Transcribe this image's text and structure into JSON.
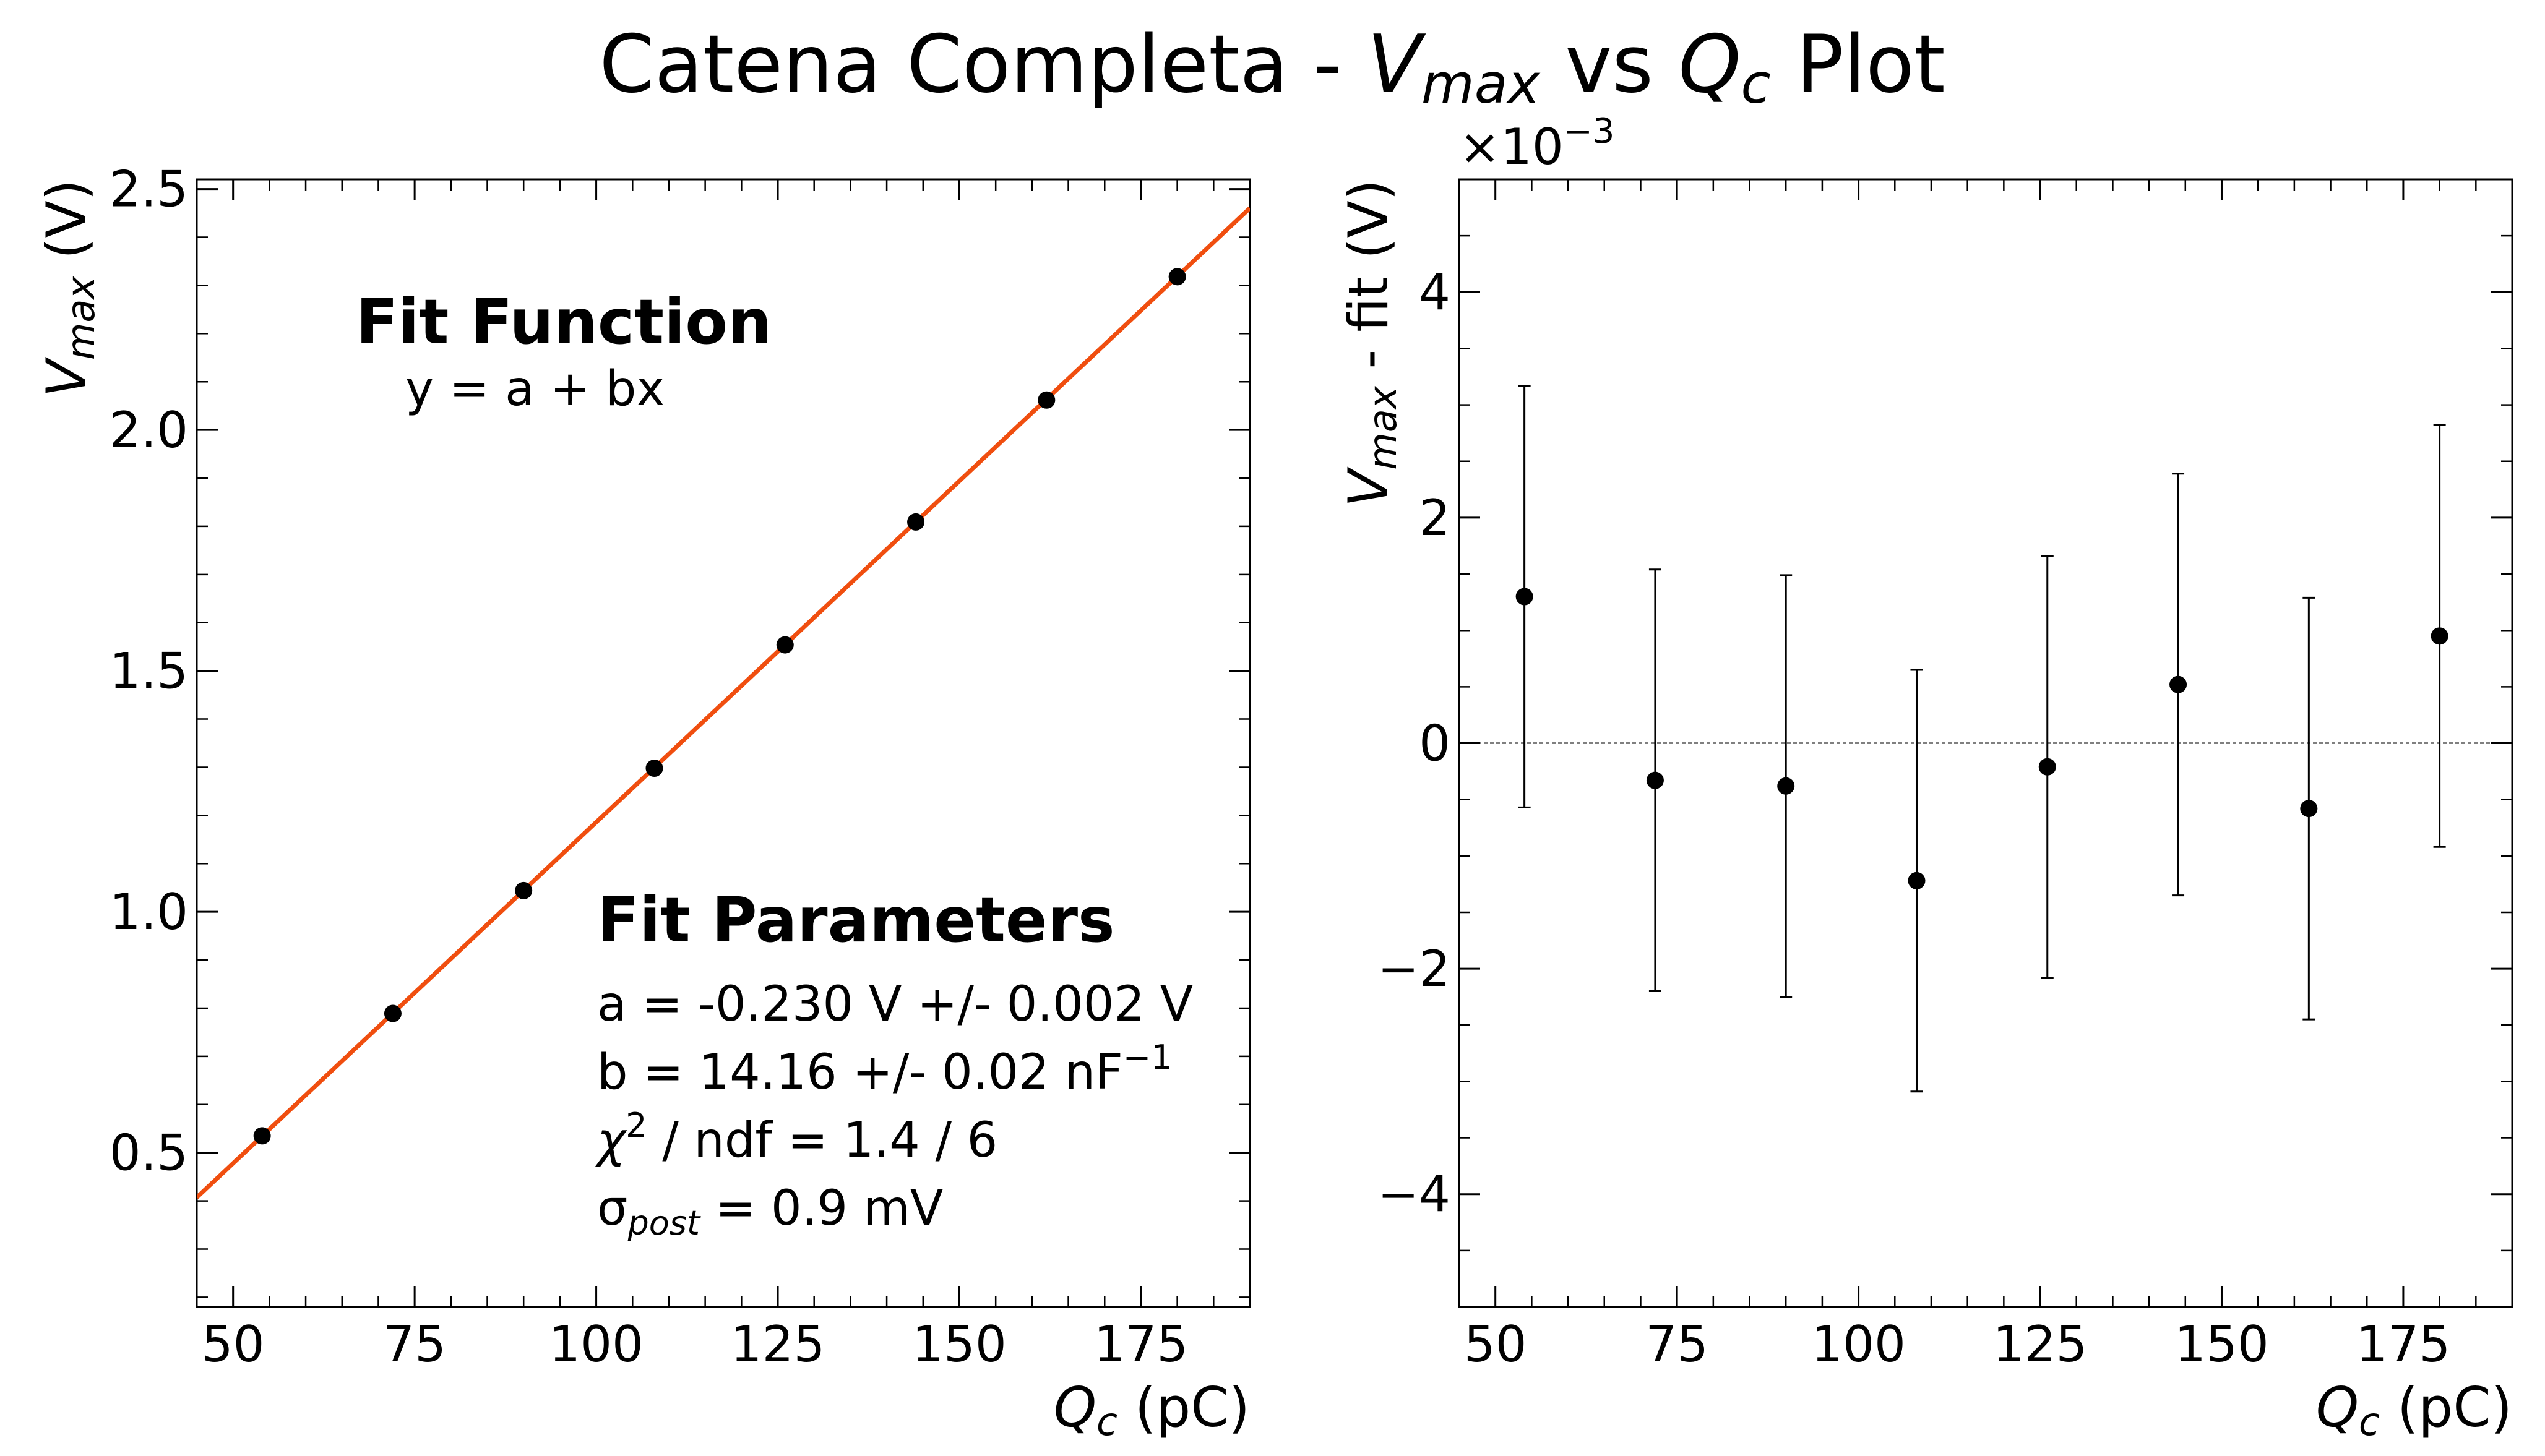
{
  "figure": {
    "title_prefix": "Catena Completa - ",
    "title_v": "V",
    "title_v_sub": "max",
    "title_mid": " vs ",
    "title_q": "Q",
    "title_q_sub": "c",
    "title_suffix": " Plot"
  },
  "chart_data": [
    {
      "type": "scatter",
      "title": "",
      "xlabel_var": "Q",
      "xlabel_sub": "c",
      "xlabel_unit": " (pC)",
      "ylabel_var": "V",
      "ylabel_sub": "max",
      "ylabel_unit": " (V)",
      "xlim": [
        45,
        190
      ],
      "ylim": [
        0.18,
        2.52
      ],
      "xticks": [
        50,
        75,
        100,
        125,
        150,
        175
      ],
      "xtick_labels": [
        "50",
        "75",
        "100",
        "125",
        "150",
        "175"
      ],
      "yticks": [
        0.5,
        1.0,
        1.5,
        2.0,
        2.5
      ],
      "ytick_labels": [
        "0.5",
        "1.0",
        "1.5",
        "2.0",
        "2.5"
      ],
      "grid": false,
      "series": [
        {
          "x": [
            54,
            72,
            90,
            108,
            126,
            144,
            162,
            180
          ],
          "y": [
            0.535,
            0.789,
            1.044,
            1.298,
            1.554,
            1.809,
            2.062,
            2.318
          ],
          "color": "#000000"
        }
      ],
      "fit_line": {
        "a": -0.23,
        "b": 0.01416,
        "color": "#f04e0f"
      },
      "annotations": {
        "fit_function_title": "Fit Function",
        "fit_function_formula": "y = a + bx",
        "fit_parameters_title": "Fit Parameters",
        "param_a": "a = -0.230 V +/- 0.002 V",
        "param_b_main": "b = 14.16 +/- 0.02 nF",
        "param_b_sup": "−1",
        "chi_symbol": "χ",
        "chi_sup": "2",
        "chi_rest": " / ndf = 1.4 / 6",
        "sigma_symbol": "σ",
        "sigma_sub": "post",
        "sigma_rest": " = 0.9 mV"
      }
    },
    {
      "type": "scatter",
      "title": "",
      "xlabel_var": "Q",
      "xlabel_sub": "c",
      "xlabel_unit": " (pC)",
      "ylabel_var": "V",
      "ylabel_sub": "max",
      "ylabel_unit": " - fit (V)",
      "y_scale_note": "×10",
      "y_scale_exp": "−3",
      "xlim": [
        45,
        190
      ],
      "ylim": [
        -0.005,
        0.005
      ],
      "xticks": [
        50,
        75,
        100,
        125,
        150,
        175
      ],
      "xtick_labels": [
        "50",
        "75",
        "100",
        "125",
        "150",
        "175"
      ],
      "yticks": [
        -0.004,
        -0.002,
        0,
        0.002,
        0.004
      ],
      "ytick_labels": [
        "−4",
        "−2",
        "0",
        "2",
        "4"
      ],
      "grid": false,
      "zero_line": true,
      "series": [
        {
          "x": [
            54,
            72,
            90,
            108,
            126,
            144,
            162,
            180
          ],
          "y": [
            0.0013,
            -0.00033,
            -0.00038,
            -0.00122,
            -0.00021,
            0.00052,
            -0.00058,
            0.00095
          ],
          "yerr": [
            0.00187,
            0.00187,
            0.00187,
            0.00187,
            0.00187,
            0.00187,
            0.00187,
            0.00187
          ],
          "color": "#000000"
        }
      ]
    }
  ]
}
